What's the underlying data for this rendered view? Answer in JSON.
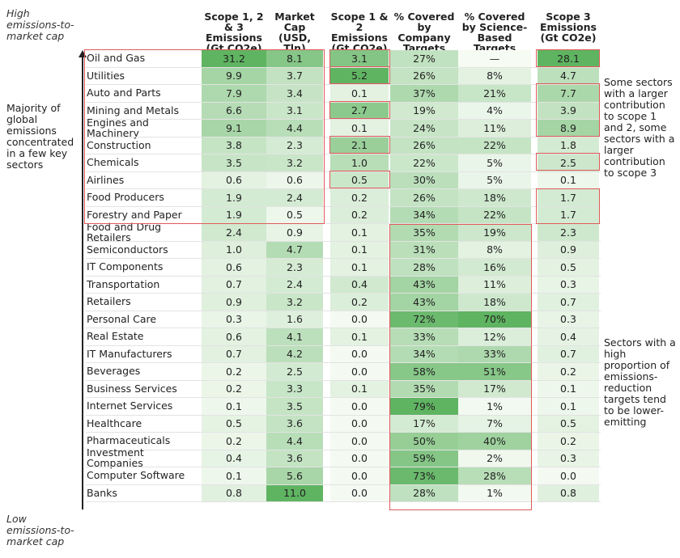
{
  "axis": {
    "top_label": "High emissions-to-market cap",
    "bottom_label": "Low emissions-to-market cap"
  },
  "annotations": {
    "left": "Majority of global emissions concentrated in a few key sectors",
    "right_top": "Some sectors with a larger contribution to scope 1 and 2, some sectors with a larger contribution to scope 3",
    "right_bottom": "Sectors with a high proportion of emissions-reduction targets tend to be lower-emitting"
  },
  "colors": {
    "highlight_border": "#e05a5a",
    "heat_low": "#f4faf2",
    "heat_high": "#5fb461"
  },
  "chart_data": {
    "type": "table",
    "columns": [
      "Scope 1, 2 & 3 Emissions (Gt CO2e)",
      "Market Cap (USD, Tln)",
      "Scope 1 & 2 Emissions (Gt CO2e)",
      "% Covered by Company Targets",
      "% Covered by Science-Based Targets",
      "Scope 3 Emissions (Gt CO2e)"
    ],
    "rows": [
      {
        "sector": "Oil and Gas",
        "values": [
          "31.2",
          "8.1",
          "3.1",
          "27%",
          "—",
          "28.1"
        ]
      },
      {
        "sector": "Utilities",
        "values": [
          "9.9",
          "3.7",
          "5.2",
          "26%",
          "8%",
          "4.7"
        ]
      },
      {
        "sector": "Auto and Parts",
        "values": [
          "7.9",
          "3.4",
          "0.1",
          "37%",
          "21%",
          "7.7"
        ]
      },
      {
        "sector": "Mining and Metals",
        "values": [
          "6.6",
          "3.1",
          "2.7",
          "19%",
          "4%",
          "3.9"
        ]
      },
      {
        "sector": "Engines and Machinery",
        "values": [
          "9.1",
          "4.4",
          "0.1",
          "24%",
          "11%",
          "8.9"
        ]
      },
      {
        "sector": "Construction",
        "values": [
          "3.8",
          "2.3",
          "2.1",
          "26%",
          "22%",
          "1.8"
        ]
      },
      {
        "sector": "Chemicals",
        "values": [
          "3.5",
          "3.2",
          "1.0",
          "22%",
          "5%",
          "2.5"
        ]
      },
      {
        "sector": "Airlines",
        "values": [
          "0.6",
          "0.6",
          "0.5",
          "30%",
          "5%",
          "0.1"
        ]
      },
      {
        "sector": "Food Producers",
        "values": [
          "1.9",
          "2.4",
          "0.2",
          "26%",
          "18%",
          "1.7"
        ]
      },
      {
        "sector": "Forestry and Paper",
        "values": [
          "1.9",
          "0.5",
          "0.2",
          "34%",
          "22%",
          "1.7"
        ]
      },
      {
        "sector": "Food and Drug Retailers",
        "values": [
          "2.4",
          "0.9",
          "0.1",
          "35%",
          "19%",
          "2.3"
        ]
      },
      {
        "sector": "Semiconductors",
        "values": [
          "1.0",
          "4.7",
          "0.1",
          "31%",
          "8%",
          "0.9"
        ]
      },
      {
        "sector": "IT Components",
        "values": [
          "0.6",
          "2.3",
          "0.1",
          "28%",
          "16%",
          "0.5"
        ]
      },
      {
        "sector": "Transportation",
        "values": [
          "0.7",
          "2.4",
          "0.4",
          "43%",
          "11%",
          "0.3"
        ]
      },
      {
        "sector": "Retailers",
        "values": [
          "0.9",
          "3.2",
          "0.2",
          "43%",
          "18%",
          "0.7"
        ]
      },
      {
        "sector": "Personal Care",
        "values": [
          "0.3",
          "1.6",
          "0.0",
          "72%",
          "70%",
          "0.3"
        ]
      },
      {
        "sector": "Real Estate",
        "values": [
          "0.6",
          "4.1",
          "0.1",
          "33%",
          "12%",
          "0.4"
        ]
      },
      {
        "sector": "IT Manufacturers",
        "values": [
          "0.7",
          "4.2",
          "0.0",
          "34%",
          "33%",
          "0.7"
        ]
      },
      {
        "sector": "Beverages",
        "values": [
          "0.2",
          "2.5",
          "0.0",
          "58%",
          "51%",
          "0.2"
        ]
      },
      {
        "sector": "Business Services",
        "values": [
          "0.2",
          "3.3",
          "0.1",
          "35%",
          "17%",
          "0.1"
        ]
      },
      {
        "sector": "Internet Services",
        "values": [
          "0.1",
          "3.5",
          "0.0",
          "79%",
          "1%",
          "0.1"
        ]
      },
      {
        "sector": "Healthcare",
        "values": [
          "0.5",
          "3.6",
          "0.0",
          "17%",
          "7%",
          "0.5"
        ]
      },
      {
        "sector": "Pharmaceuticals",
        "values": [
          "0.2",
          "4.4",
          "0.0",
          "50%",
          "40%",
          "0.2"
        ]
      },
      {
        "sector": "Investment Companies",
        "values": [
          "0.4",
          "3.6",
          "0.0",
          "59%",
          "2%",
          "0.3"
        ]
      },
      {
        "sector": "Computer Software",
        "values": [
          "0.1",
          "5.6",
          "0.0",
          "73%",
          "28%",
          "0.0"
        ]
      },
      {
        "sector": "Banks",
        "values": [
          "0.8",
          "11.0",
          "0.0",
          "28%",
          "1%",
          "0.8"
        ]
      }
    ],
    "highlights": {
      "scope123_marketcap_top_sectors": [
        "Oil and Gas",
        "Utilities",
        "Auto and Parts",
        "Mining and Metals",
        "Engines and Machinery",
        "Construction",
        "Chemicals",
        "Airlines",
        "Food Producers",
        "Forestry and Paper"
      ],
      "scope12_outlined": [
        "Oil and Gas",
        "Utilities",
        "Mining and Metals",
        "Construction",
        "Airlines"
      ],
      "scope3_outlined": [
        "Oil and Gas",
        "Auto and Parts",
        "Mining and Metals",
        "Engines and Machinery",
        "Chemicals",
        "Food Producers",
        "Forestry and Paper"
      ],
      "targets_outlined_sectors": [
        "Food and Drug Retailers",
        "Semiconductors",
        "IT Components",
        "Transportation",
        "Retailers",
        "Personal Care",
        "Real Estate",
        "IT Manufacturers",
        "Beverages",
        "Business Services",
        "Internet Services",
        "Healthcare",
        "Pharmaceuticals",
        "Investment Companies",
        "Computer Software",
        "Banks"
      ]
    }
  }
}
